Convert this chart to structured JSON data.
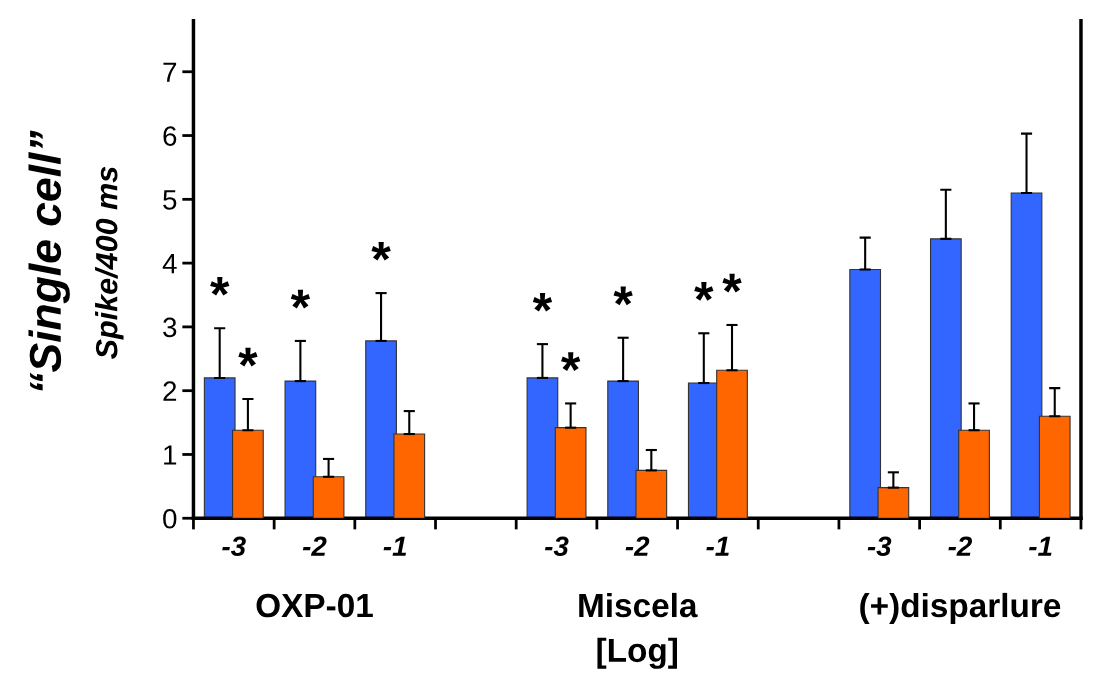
{
  "chart_data": {
    "type": "bar",
    "categories": [
      "-3",
      "-2",
      "-1",
      null,
      "-3",
      "-2",
      "-1",
      null,
      "-3",
      "-2",
      "-1"
    ],
    "series": [
      {
        "color": "#3366ff",
        "values": [
          2.2,
          2.15,
          2.78,
          null,
          2.2,
          2.15,
          2.12,
          null,
          3.9,
          4.38,
          5.1
        ],
        "errors": [
          0.78,
          0.63,
          0.75,
          null,
          0.53,
          0.68,
          0.78,
          null,
          0.5,
          0.77,
          0.93
        ],
        "value_labels": [
          "*",
          "*",
          "*",
          null,
          "*",
          "*",
          "*",
          null,
          null,
          null,
          null
        ]
      },
      {
        "color": "#ff6600",
        "values": [
          1.38,
          0.65,
          1.32,
          null,
          1.42,
          0.75,
          2.32,
          null,
          0.48,
          1.38,
          1.6
        ],
        "errors": [
          0.49,
          0.28,
          0.36,
          null,
          0.38,
          0.32,
          0.71,
          null,
          0.24,
          0.42,
          0.44
        ],
        "value_labels": [
          "*",
          null,
          null,
          null,
          "*",
          null,
          "*",
          null,
          null,
          null,
          null
        ]
      }
    ],
    "ylabel": "“Single cell”\nSpike/400 ms",
    "xlabel": "[Log]",
    "annotations": [
      "OXP-01",
      "Miscela",
      "(+)disparlure"
    ],
    "ylim": [
      0,
      7.8
    ],
    "yticks": [
      0,
      1,
      2,
      3,
      4,
      5,
      6,
      7
    ],
    "grid": false,
    "legend": false
  }
}
